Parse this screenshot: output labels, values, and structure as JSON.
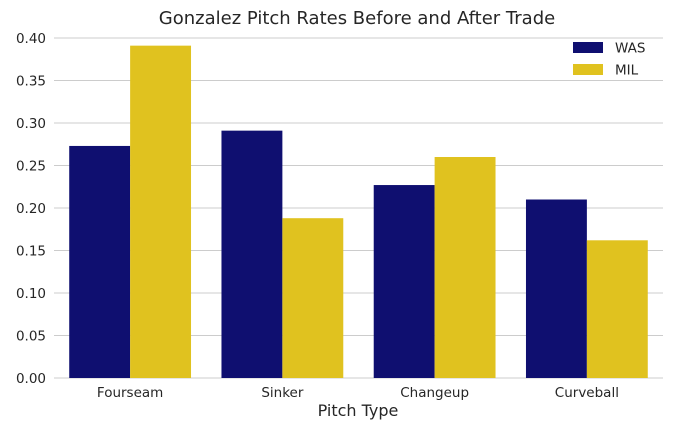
{
  "chart_data": {
    "type": "bar",
    "title": "Gonzalez Pitch Rates Before and After Trade",
    "xlabel": "Pitch Type",
    "ylabel": "",
    "categories": [
      "Fourseam",
      "Sinker",
      "Changeup",
      "Curveball"
    ],
    "series": [
      {
        "name": "WAS",
        "color": "#0f0f70",
        "values": [
          0.273,
          0.291,
          0.227,
          0.21
        ]
      },
      {
        "name": "MIL",
        "color": "#e0c21f",
        "values": [
          0.391,
          0.188,
          0.26,
          0.162
        ]
      }
    ],
    "ylim": [
      0,
      0.4
    ],
    "yticks": [
      "0.00",
      "0.05",
      "0.10",
      "0.15",
      "0.20",
      "0.25",
      "0.30",
      "0.35",
      "0.40"
    ],
    "grid": true,
    "legend_position": "top-right"
  }
}
